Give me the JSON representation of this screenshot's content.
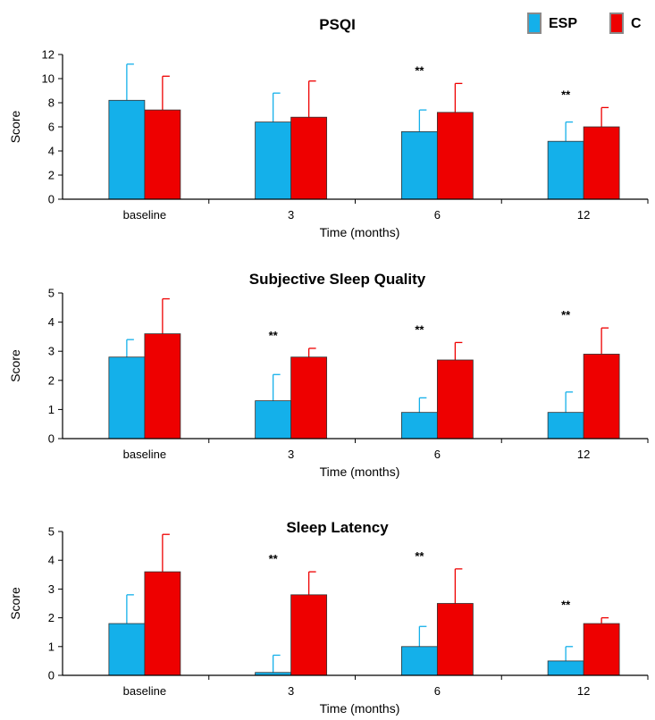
{
  "legend": {
    "position": "top-right",
    "items": [
      {
        "name": "ESP",
        "color": "#14b0ea"
      },
      {
        "name": "C",
        "color": "#ee0000"
      }
    ]
  },
  "chart_data": [
    {
      "type": "bar",
      "title": "PSQI",
      "xlabel": "Time (months)",
      "ylabel": "Score",
      "categories": [
        "baseline",
        "3",
        "6",
        "12"
      ],
      "ylim": [
        0,
        12
      ],
      "yticks": [
        0,
        2,
        4,
        6,
        8,
        10,
        12
      ],
      "grid": false,
      "series": [
        {
          "name": "ESP",
          "color": "#14b0ea",
          "values": [
            8.2,
            6.4,
            5.6,
            4.8
          ],
          "error": [
            3.0,
            2.4,
            1.8,
            1.6
          ]
        },
        {
          "name": "C",
          "color": "#ee0000",
          "values": [
            7.4,
            6.8,
            7.2,
            6.0
          ],
          "error": [
            2.8,
            3.0,
            2.4,
            1.6
          ]
        }
      ],
      "annotations": [
        "",
        "",
        "**",
        "**"
      ]
    },
    {
      "type": "bar",
      "title": "Subjective Sleep Quality",
      "xlabel": "Time (months)",
      "ylabel": "Score",
      "categories": [
        "baseline",
        "3",
        "6",
        "12"
      ],
      "ylim": [
        0,
        5
      ],
      "yticks": [
        0,
        1,
        2,
        3,
        4,
        5
      ],
      "grid": false,
      "series": [
        {
          "name": "ESP",
          "color": "#14b0ea",
          "values": [
            2.8,
            1.3,
            0.9,
            0.9
          ],
          "error": [
            0.6,
            0.9,
            0.5,
            0.7
          ]
        },
        {
          "name": "C",
          "color": "#ee0000",
          "values": [
            3.6,
            2.8,
            2.7,
            2.9
          ],
          "error": [
            1.2,
            0.3,
            0.6,
            0.9
          ]
        }
      ],
      "annotations": [
        "",
        "**",
        "**",
        "**"
      ]
    },
    {
      "type": "bar",
      "title": "Sleep Latency",
      "xlabel": "Time (months)",
      "ylabel": "Score",
      "categories": [
        "baseline",
        "3",
        "6",
        "12"
      ],
      "ylim": [
        0,
        5
      ],
      "yticks": [
        0,
        1,
        2,
        3,
        4,
        5
      ],
      "grid": false,
      "series": [
        {
          "name": "ESP",
          "color": "#14b0ea",
          "values": [
            1.8,
            0.1,
            1.0,
            0.5
          ],
          "error": [
            1.0,
            0.6,
            0.7,
            0.5
          ]
        },
        {
          "name": "C",
          "color": "#ee0000",
          "values": [
            3.6,
            2.8,
            2.5,
            1.8
          ],
          "error": [
            1.3,
            0.8,
            1.2,
            0.2
          ]
        }
      ],
      "annotations": [
        "",
        "**",
        "**",
        "**"
      ]
    }
  ]
}
